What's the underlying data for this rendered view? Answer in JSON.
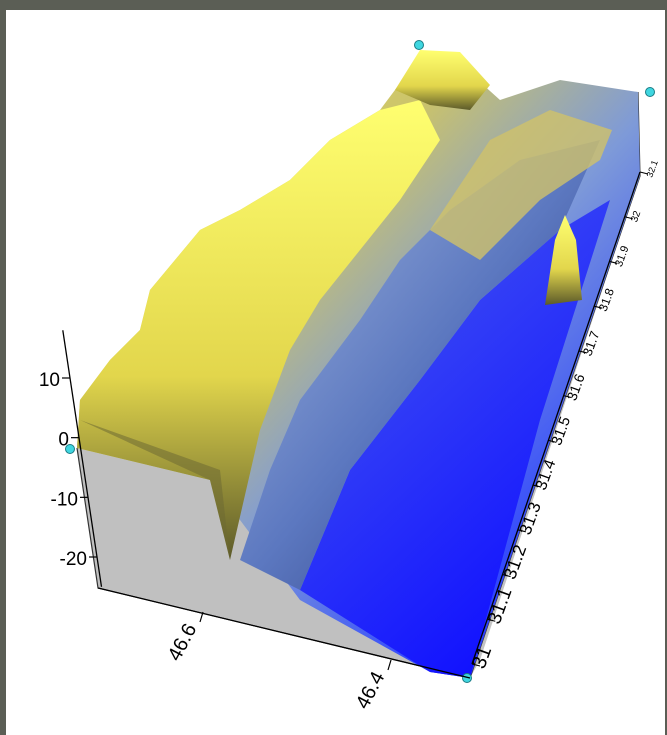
{
  "chart_data": {
    "type": "surface-3d",
    "title": "",
    "xlabel": "",
    "ylabel": "",
    "zlabel": "",
    "x_ticks": [
      "46.6",
      "46.4"
    ],
    "y_ticks": [
      "31",
      "31.1",
      "31.2",
      "31.3",
      "31.4",
      "31.5",
      "31.6",
      "31.7",
      "31.8",
      "31.9",
      "32",
      "32.1"
    ],
    "z_ticks": [
      "10",
      "0",
      "-10",
      "-20"
    ],
    "zlim": [
      -25,
      18
    ],
    "colormap": [
      "#1414ff",
      "#2f45ff",
      "#7e9ad8",
      "#c9c26c",
      "#fff25a"
    ],
    "grid": false,
    "legend": false
  },
  "colors": {
    "background_outer": "#5b5e55",
    "panel": "#ffffff",
    "box_side": "#c0c0c0",
    "corner_marker": "#3fd6e0"
  }
}
